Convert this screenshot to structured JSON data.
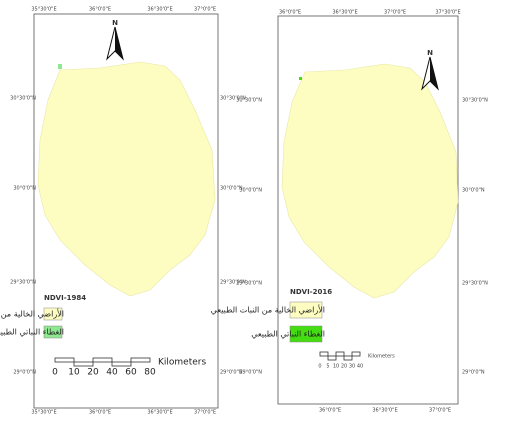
{
  "maps": [
    {
      "north": "N",
      "top_labels": [
        "35°30'0\"E",
        "36°0'0\"E",
        "36°30'0\"E",
        "37°0'0\"E"
      ],
      "left_labels": [
        "30°30'0\"N",
        "30°0'0\"N",
        "29°30'0\"N",
        "29°0'0\"N"
      ],
      "right_labels": [
        "30°30'0\"N",
        "30°0'0\"N",
        "29°30'0\"N",
        "29°0'0\"N"
      ],
      "bottom_labels": [
        "35°30'0\"E",
        "36°0'0\"E",
        "36°30'0\"E",
        "37°0'0\"E"
      ],
      "legend": {
        "title": "NDVI-1984",
        "items": [
          {
            "label": "الأراضي الخالية من الغطاء النباتي",
            "color": "#fdfdc2"
          },
          {
            "label": "الغطاء النباتي الطبيعي",
            "color": "#8fe88f"
          }
        ]
      },
      "scale": {
        "ticks": [
          0,
          10,
          20,
          40,
          60,
          80
        ],
        "unit": "Kilometers"
      }
    },
    {
      "north": "N",
      "top_labels": [
        "36°0'0\"E",
        "36°30'0\"E",
        "37°0'0\"E",
        "37°30'0\"E"
      ],
      "left_labels": [
        "30°30'0\"N",
        "30°0'0\"N",
        "29°30'0\"N",
        "29°0'0\"N"
      ],
      "right_labels": [
        "30°30'0\"N",
        "30°0'0\"N",
        "29°30'0\"N",
        "29°0'0\"N"
      ],
      "bottom_labels": [
        "36°0'0\"E",
        "36°30'0\"E",
        "37°0'0\"E"
      ],
      "legend": {
        "title": "NDVI-2016",
        "items": [
          {
            "label": "الأراضي الخالية من النبات الطبيعي",
            "color": "#fdfdc2"
          },
          {
            "label": "الغطاء النباتي الطبيعي",
            "color": "#44dd11"
          }
        ]
      },
      "scale": {
        "ticks": [
          0,
          5,
          10,
          20,
          30,
          40
        ],
        "unit": "Kilometers"
      }
    }
  ]
}
